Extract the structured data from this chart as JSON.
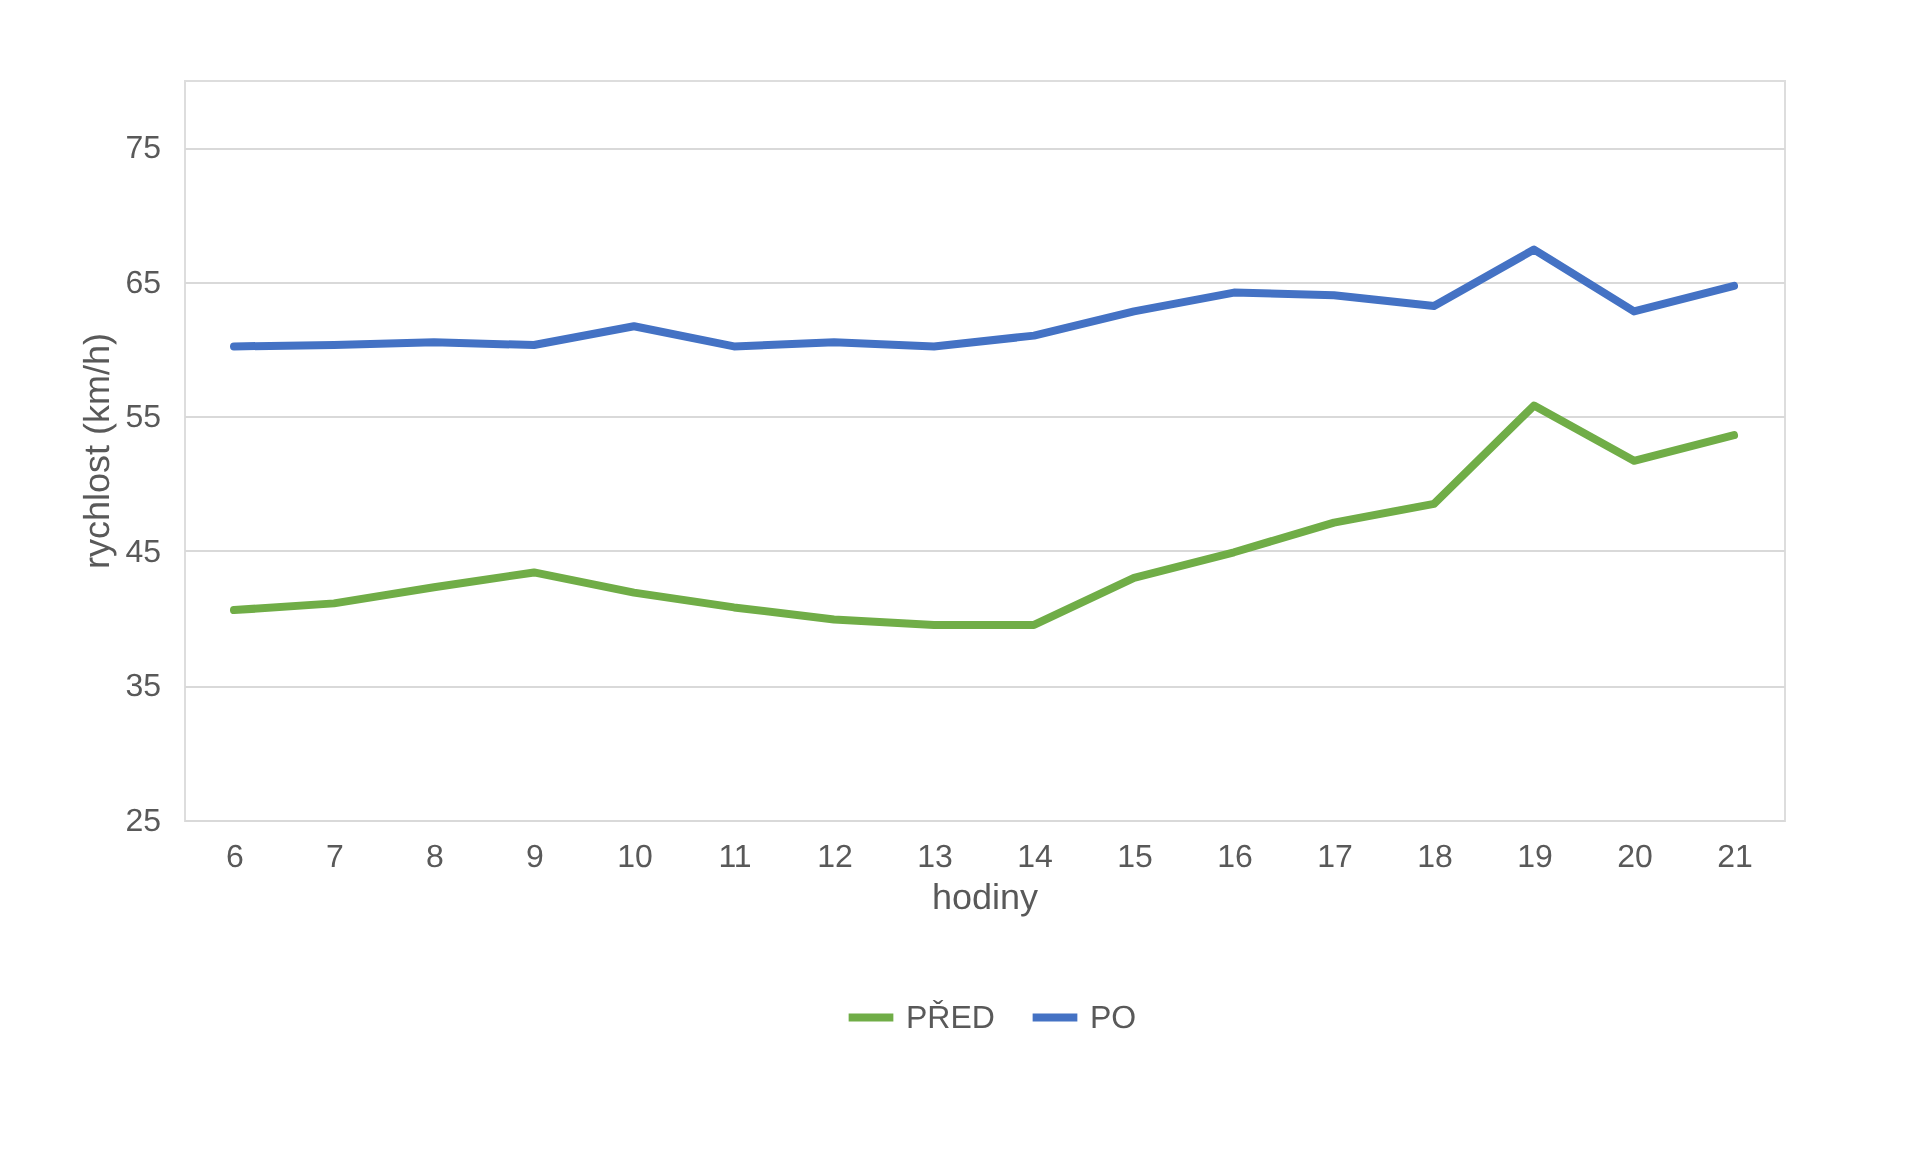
{
  "chart_data": {
    "type": "line",
    "xlabel": "hodiny",
    "ylabel": "rychlost (km/h)",
    "categories": [
      "6",
      "7",
      "8",
      "9",
      "10",
      "11",
      "12",
      "13",
      "14",
      "15",
      "16",
      "17",
      "18",
      "19",
      "20",
      "21"
    ],
    "series": [
      {
        "name": "PŘED",
        "color": "#70ad47",
        "values": [
          40.6,
          41.1,
          42.3,
          43.4,
          41.9,
          40.8,
          39.9,
          39.5,
          39.5,
          43.0,
          44.9,
          47.1,
          48.5,
          55.8,
          51.7,
          53.6
        ]
      },
      {
        "name": "PO",
        "color": "#4472c4",
        "values": [
          60.2,
          60.3,
          60.5,
          60.3,
          61.7,
          60.2,
          60.5,
          60.2,
          61.0,
          62.8,
          64.2,
          64.0,
          63.2,
          67.4,
          62.8,
          64.7
        ]
      }
    ],
    "ylim": [
      25,
      80
    ],
    "yticks": [
      25,
      35,
      45,
      55,
      65,
      75
    ],
    "grid": "y",
    "legend": "bottom",
    "marker": "none",
    "line_style": "solid"
  }
}
